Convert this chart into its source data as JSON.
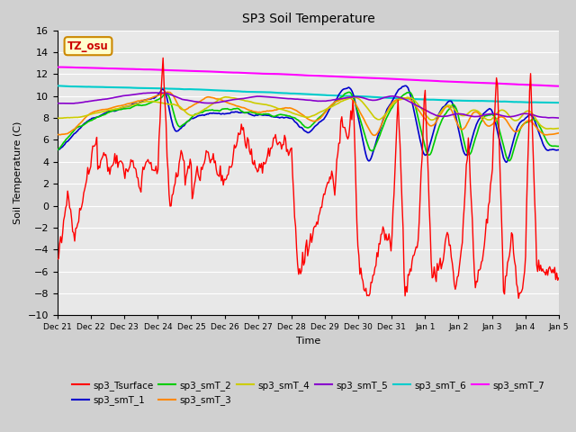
{
  "title": "SP3 Soil Temperature",
  "ylabel": "Soil Temperature (C)",
  "xlabel": "Time",
  "ylim": [
    -10,
    16
  ],
  "series_colors": {
    "sp3_Tsurface": "#ff0000",
    "sp3_smT_1": "#0000cc",
    "sp3_smT_2": "#00cc00",
    "sp3_smT_3": "#ff8800",
    "sp3_smT_4": "#cccc00",
    "sp3_smT_5": "#8800cc",
    "sp3_smT_6": "#00cccc",
    "sp3_smT_7": "#ff00ff"
  },
  "tz_label": "TZ_osu",
  "tz_bg": "#ffffcc",
  "tz_border": "#cc8800",
  "tz_text_color": "#cc0000",
  "x_tick_labels": [
    "Dec 21",
    "Dec 22",
    "Dec 23",
    "Dec 24",
    "Dec 25",
    "Dec 26",
    "Dec 27",
    "Dec 28",
    "Dec 29",
    "Dec 30",
    "Dec 31",
    "Jan 1",
    "Jan 2",
    "Jan 3",
    "Jan 4",
    "Jan 5"
  ],
  "num_points": 500
}
